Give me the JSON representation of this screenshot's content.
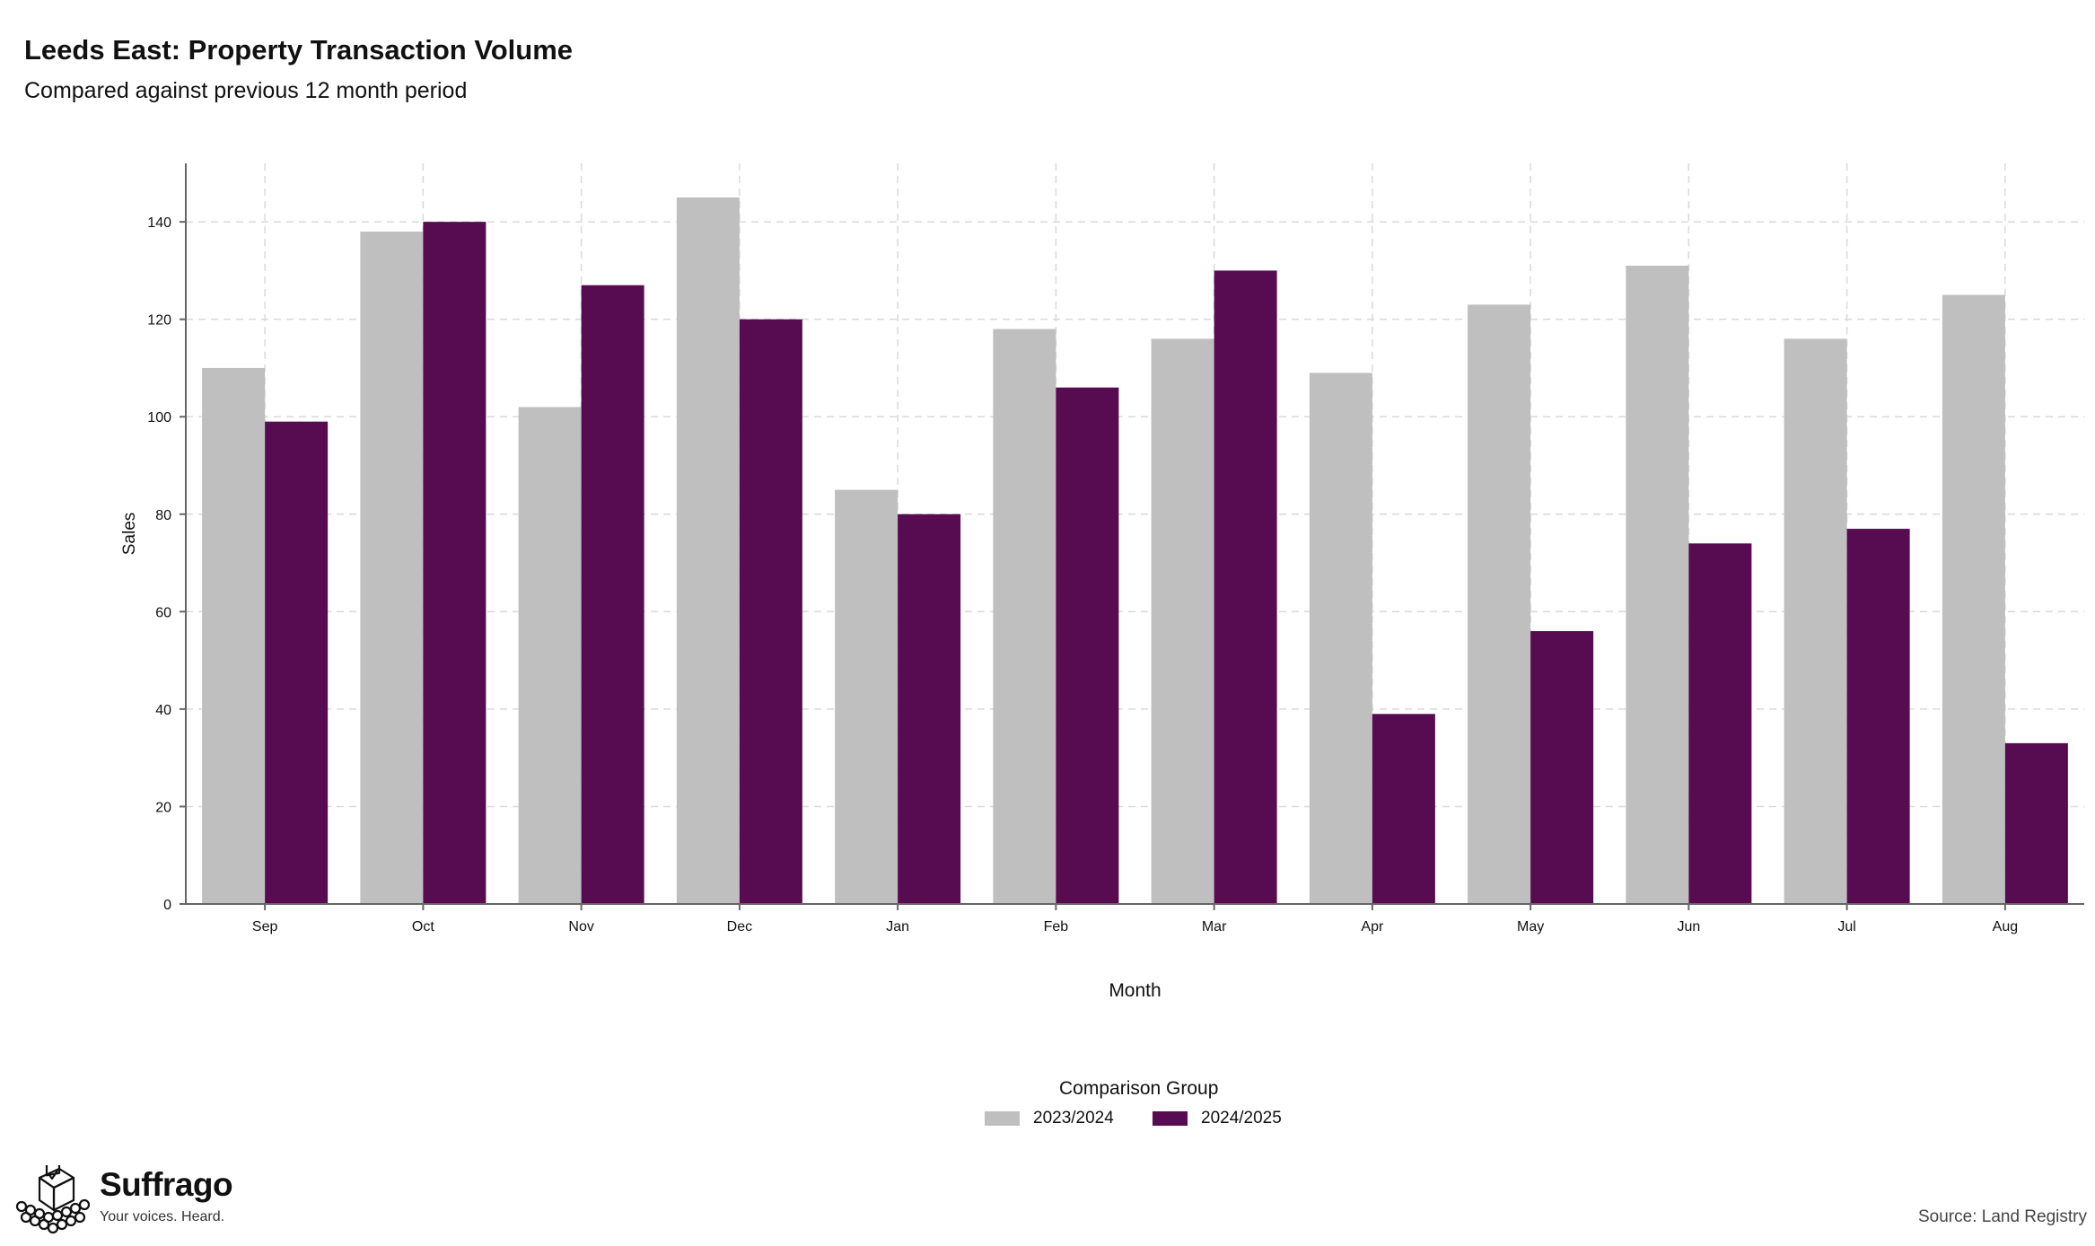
{
  "header": {
    "title": "Leeds East: Property Transaction Volume",
    "subtitle": "Compared against previous 12 month period"
  },
  "legend": {
    "title": "Comparison Group",
    "items": [
      {
        "label": "2023/2024",
        "color": "#bfbfbf"
      },
      {
        "label": "2024/2025",
        "color": "#570b51"
      }
    ]
  },
  "branding": {
    "name": "Suffrago",
    "tagline": "Your voices. Heard.",
    "icon": "ballot-box-icon"
  },
  "source": "Source: Land Registry",
  "chart_data": {
    "type": "bar",
    "title": "Leeds East: Property Transaction Volume",
    "subtitle": "Compared against previous 12 month period",
    "xlabel": "Month",
    "ylabel": "Sales",
    "categories": [
      "Sep",
      "Oct",
      "Nov",
      "Dec",
      "Jan",
      "Feb",
      "Mar",
      "Apr",
      "May",
      "Jun",
      "Jul",
      "Aug"
    ],
    "series": [
      {
        "name": "2023/2024",
        "color": "#bfbfbf",
        "values": [
          110,
          138,
          102,
          145,
          85,
          118,
          116,
          109,
          123,
          131,
          116,
          125
        ]
      },
      {
        "name": "2024/2025",
        "color": "#570b51",
        "values": [
          99,
          140,
          127,
          120,
          80,
          106,
          130,
          39,
          56,
          74,
          77,
          33
        ]
      }
    ],
    "ylim": [
      0,
      152
    ],
    "yticks": [
      0,
      20,
      40,
      60,
      80,
      100,
      120,
      140
    ],
    "grid": true,
    "legend_position": "bottom"
  }
}
